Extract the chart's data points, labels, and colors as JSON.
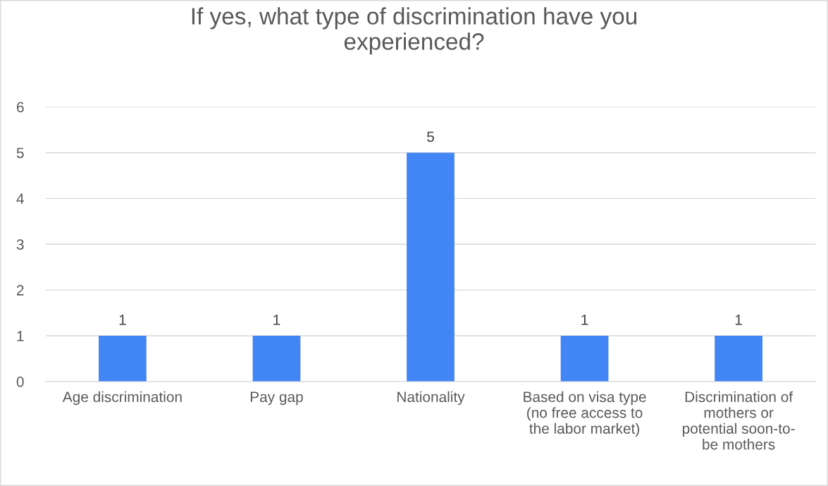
{
  "chart_data": {
    "type": "bar",
    "title": "If yes, what type of discrimination have you\nexperienced?",
    "categories": [
      "Age discrimination",
      "Pay gap",
      "Nationality",
      "Based on visa type\n(no free access to\nthe labor market)",
      "Discrimination of\nmothers or\npotential soon-to-\nbe mothers"
    ],
    "values": [
      1,
      1,
      5,
      1,
      1
    ],
    "color": "#4285f4",
    "ylim": [
      0,
      6
    ],
    "yticks": [
      0,
      1,
      2,
      3,
      4,
      5,
      6
    ],
    "grid": "y",
    "data_labels": true
  }
}
